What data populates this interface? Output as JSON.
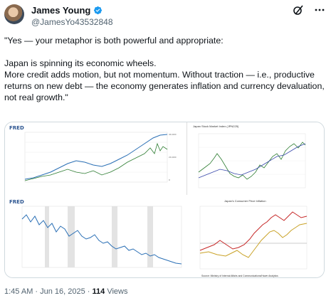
{
  "author": {
    "name": "James Young",
    "handle": "@JamesYo43532848"
  },
  "icons": {
    "verified": "verified-badge-icon",
    "grok": "grok-icon",
    "more": "more-options-icon"
  },
  "tweet": {
    "paragraphs": [
      "\"Yes — your metaphor is both powerful and appropriate:",
      "Japan is spinning its economic wheels.",
      "More credit adds motion, but not momentum. Without traction — i.e., productive returns on new debt — the economy generates inflation and currency devaluation, not real growth.\""
    ]
  },
  "media": {
    "panel1": {
      "logo": "FRED"
    },
    "panel2": {
      "title": "Japan Stock Market Index (JPN225)"
    },
    "panel3": {
      "logo": "FRED"
    },
    "panel4": {
      "title": "Japan's Consumer Price Inflation",
      "source": "Source: Ministry of Internal Affairs and Communications/Haver Analytics"
    }
  },
  "meta": {
    "time": "1:45 AM · Jun 16, 2025 · ",
    "views_count": "114",
    "views_label": " Views"
  },
  "colors": {
    "accent": "#1d9bf0",
    "muted": "#536471"
  }
}
